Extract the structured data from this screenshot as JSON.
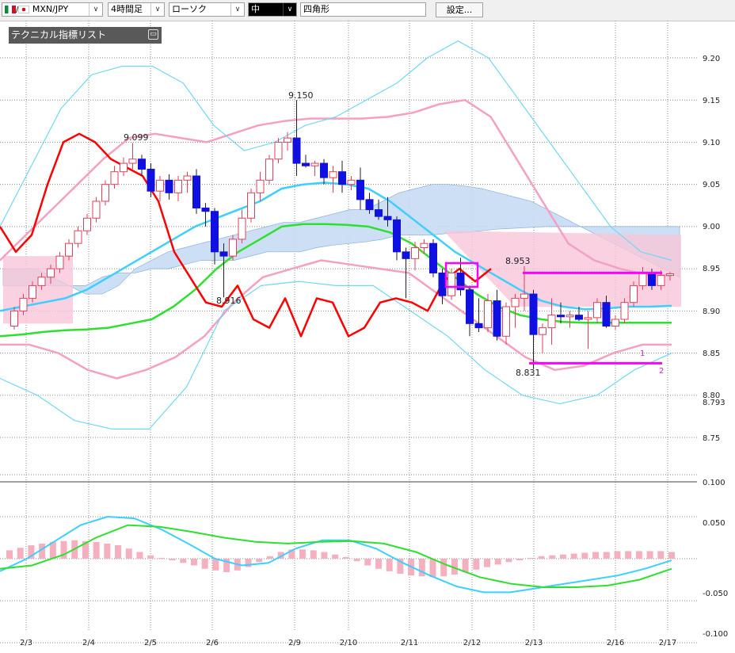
{
  "toolbar": {
    "symbol": "MXN/JPY",
    "timeframe": "4時間足",
    "chart_style": "ローソク",
    "line_width": "中",
    "draw_tool": "四角形",
    "settings_label": "設定..."
  },
  "tech_list": {
    "title": "テクニカル指標リスト",
    "min_label": "▭"
  },
  "colors": {
    "up": "#e0405a",
    "down": "#1010e0",
    "sma_short": "#ff0000",
    "sma_mid": "#3ccfff",
    "sma_long": "#2ee02e",
    "bollinger_1": "#f5a0c0",
    "bollinger_2": "#6fd8f5",
    "cloud_up": "#c8dcf5",
    "cloud_down": "#f7c6d8",
    "macd_line": "#3ccfff",
    "signal_line": "#2ee02e",
    "histogram": "#f5b0c0",
    "range_line": "#ff00ff"
  },
  "chart_data": [
    {
      "type": "candlestick",
      "title": "",
      "ylim": [
        8.76,
        9.22
      ],
      "yticks": [
        "9.20",
        "9.15",
        "9.10",
        "9.05",
        "9.00",
        "8.95",
        "8.90",
        "8.85",
        "8.80",
        "8.793",
        "8.75"
      ],
      "dates": [
        "2/3",
        "2/4",
        "2/5",
        "2/6",
        "2/9",
        "2/10",
        "2/11",
        "2/12",
        "2/13",
        "2/16",
        "2/17"
      ],
      "candles": [
        [
          8.882,
          8.905,
          8.878,
          8.9
        ],
        [
          8.9,
          8.92,
          8.895,
          8.915
        ],
        [
          8.915,
          8.935,
          8.91,
          8.93
        ],
        [
          8.93,
          8.945,
          8.925,
          8.94
        ],
        [
          8.94,
          8.955,
          8.932,
          8.95
        ],
        [
          8.95,
          8.97,
          8.945,
          8.965
        ],
        [
          8.965,
          8.985,
          8.96,
          8.98
        ],
        [
          8.98,
          9.0,
          8.975,
          8.995
        ],
        [
          8.995,
          9.015,
          8.99,
          9.01
        ],
        [
          9.01,
          9.035,
          9.005,
          9.03
        ],
        [
          9.03,
          9.055,
          9.025,
          9.05
        ],
        [
          9.05,
          9.072,
          9.045,
          9.065
        ],
        [
          9.065,
          9.082,
          9.06,
          9.075
        ],
        [
          9.075,
          9.099,
          9.068,
          9.08
        ],
        [
          9.08,
          9.085,
          9.06,
          9.068
        ],
        [
          9.068,
          9.075,
          9.035,
          9.042
        ],
        [
          9.042,
          9.06,
          9.03,
          9.055
        ],
        [
          9.055,
          9.062,
          9.032,
          9.04
        ],
        [
          9.04,
          9.06,
          9.03,
          9.055
        ],
        [
          9.055,
          9.065,
          9.04,
          9.06
        ],
        [
          9.06,
          9.068,
          9.015,
          9.022
        ],
        [
          9.022,
          9.028,
          9.0,
          9.018
        ],
        [
          9.018,
          9.022,
          8.955,
          8.97
        ],
        [
          8.97,
          8.98,
          8.916,
          8.965
        ],
        [
          8.965,
          8.99,
          8.96,
          8.985
        ],
        [
          8.985,
          9.02,
          8.98,
          9.01
        ],
        [
          9.01,
          9.045,
          9.005,
          9.04
        ],
        [
          9.04,
          9.065,
          9.03,
          9.055
        ],
        [
          9.055,
          9.085,
          9.05,
          9.08
        ],
        [
          9.08,
          9.105,
          9.075,
          9.1
        ],
        [
          9.1,
          9.112,
          9.09,
          9.105
        ],
        [
          9.105,
          9.15,
          9.06,
          9.075
        ],
        [
          9.075,
          9.085,
          9.07,
          9.072
        ],
        [
          9.072,
          9.078,
          9.06,
          9.075
        ],
        [
          9.075,
          9.08,
          9.05,
          9.058
        ],
        [
          9.058,
          9.072,
          9.04,
          9.065
        ],
        [
          9.065,
          9.078,
          9.04,
          9.05
        ],
        [
          9.05,
          9.06,
          9.043,
          9.055
        ],
        [
          9.055,
          9.07,
          9.02,
          9.032
        ],
        [
          9.032,
          9.04,
          9.015,
          9.02
        ],
        [
          9.02,
          9.032,
          9.008,
          9.012
        ],
        [
          9.012,
          9.035,
          9.0,
          9.008
        ],
        [
          9.008,
          9.012,
          8.96,
          8.97
        ],
        [
          8.97,
          8.975,
          8.915,
          8.962
        ],
        [
          8.962,
          8.982,
          8.948,
          8.975
        ],
        [
          8.975,
          8.985,
          8.968,
          8.98
        ],
        [
          8.98,
          8.985,
          8.94,
          8.945
        ],
        [
          8.945,
          8.95,
          8.908,
          8.918
        ],
        [
          8.918,
          8.95,
          8.913,
          8.945
        ],
        [
          8.945,
          8.963,
          8.918,
          8.925
        ],
        [
          8.925,
          8.93,
          8.87,
          8.885
        ],
        [
          8.885,
          8.915,
          8.875,
          8.88
        ],
        [
          8.88,
          8.92,
          8.875,
          8.912
        ],
        [
          8.912,
          8.925,
          8.865,
          8.87
        ],
        [
          8.87,
          8.91,
          8.86,
          8.905
        ],
        [
          8.905,
          8.92,
          8.88,
          8.915
        ],
        [
          8.915,
          8.953,
          8.9,
          8.92
        ],
        [
          8.92,
          8.925,
          8.831,
          8.872
        ],
        [
          8.872,
          8.885,
          8.85,
          8.88
        ],
        [
          8.88,
          8.915,
          8.86,
          8.895
        ],
        [
          8.895,
          8.91,
          8.885,
          8.893
        ],
        [
          8.893,
          8.9,
          8.88,
          8.895
        ],
        [
          8.895,
          8.905,
          8.888,
          8.89
        ],
        [
          8.89,
          8.9,
          8.855,
          8.892
        ],
        [
          8.892,
          8.915,
          8.885,
          8.91
        ],
        [
          8.91,
          8.918,
          8.88,
          8.882
        ],
        [
          8.882,
          8.895,
          8.878,
          8.89
        ],
        [
          8.89,
          8.915,
          8.885,
          8.91
        ],
        [
          8.91,
          8.935,
          8.905,
          8.93
        ],
        [
          8.93,
          8.952,
          8.925,
          8.945
        ],
        [
          8.945,
          8.95,
          8.925,
          8.93
        ],
        [
          8.93,
          8.948,
          8.925,
          8.942
        ],
        [
          8.942,
          8.946,
          8.936,
          8.944
        ]
      ],
      "annotations": [
        {
          "text": "9.099"
        },
        {
          "text": "8.916"
        },
        {
          "text": "9.150"
        },
        {
          "text": "8.953"
        },
        {
          "text": "8.831"
        },
        {
          "text": "1"
        },
        {
          "text": "2"
        }
      ],
      "cloud": {
        "span_a": [
          8.95,
          8.95,
          8.95,
          8.94,
          8.93,
          8.92,
          8.92,
          8.93,
          8.95,
          8.96,
          8.97,
          8.975,
          8.98,
          8.985,
          8.99,
          8.995,
          9.0,
          9.005,
          9.005,
          9.01,
          9.015,
          9.02,
          9.02,
          9.03,
          9.04,
          9.045,
          9.05,
          9.05,
          9.048,
          9.045,
          9.04,
          9.035,
          9.03,
          9.02,
          9.01,
          9.0,
          8.99,
          8.98,
          8.97,
          8.96,
          8.95,
          8.94
        ],
        "span_b": [
          8.93,
          8.93,
          8.93,
          8.93,
          8.93,
          8.93,
          8.94,
          8.945,
          8.945,
          8.95,
          8.95,
          8.955,
          8.96,
          8.96,
          8.96,
          8.965,
          8.97,
          8.97,
          8.97,
          8.975,
          8.978,
          8.98,
          8.982,
          8.985,
          8.99,
          8.99,
          8.99,
          8.992,
          8.993,
          8.995,
          8.997,
          8.998,
          8.999,
          9.0,
          9.0,
          9.0,
          9.0,
          9.0,
          9.0,
          9.0,
          9.0,
          9.0
        ]
      },
      "lines": {
        "sma_short": [
          9.0,
          8.97,
          8.99,
          9.05,
          9.1,
          9.11,
          9.1,
          9.08,
          9.07,
          9.06,
          9.03,
          8.97,
          8.94,
          8.91,
          8.905,
          8.93,
          8.89,
          8.88,
          8.915,
          8.87,
          8.915,
          8.91,
          8.87,
          8.88,
          8.91,
          8.915,
          8.91,
          8.9,
          8.935,
          8.95,
          8.935,
          8.95
        ],
        "sma_mid": [
          8.9,
          8.905,
          8.91,
          8.915,
          8.925,
          8.94,
          8.955,
          8.97,
          8.985,
          9.0,
          9.01,
          9.02,
          9.03,
          9.045,
          9.05,
          9.052,
          9.05,
          9.045,
          9.03,
          9.01,
          8.99,
          8.97,
          8.955,
          8.94,
          8.925,
          8.912,
          8.905,
          8.902,
          8.903,
          8.905,
          8.905,
          8.906
        ],
        "sma_long": [
          8.87,
          8.872,
          8.875,
          8.877,
          8.878,
          8.88,
          8.885,
          8.89,
          8.905,
          8.925,
          8.95,
          8.97,
          8.985,
          9.0,
          9.003,
          9.003,
          9.002,
          9.0,
          8.993,
          8.98,
          8.96,
          8.94,
          8.92,
          8.905,
          8.895,
          8.89,
          8.887,
          8.886,
          8.886,
          8.886,
          8.886,
          8.886
        ],
        "bb1_upper": [
          8.96,
          8.99,
          9.02,
          9.05,
          9.08,
          9.105,
          9.11,
          9.105,
          9.1,
          9.11,
          9.12,
          9.125,
          9.128,
          9.128,
          9.128,
          9.13,
          9.135,
          9.145,
          9.15,
          9.13,
          9.08,
          9.03,
          8.98,
          8.96,
          8.95,
          8.943,
          8.942
        ],
        "bb1_lower": [
          8.86,
          8.86,
          8.85,
          8.83,
          8.82,
          8.83,
          8.845,
          8.87,
          8.91,
          8.94,
          8.95,
          8.96,
          8.955,
          8.95,
          8.945,
          8.92,
          8.895,
          8.87,
          8.845,
          8.83,
          8.835,
          8.85,
          8.86,
          8.86
        ],
        "bb2_upper": [
          9.0,
          9.07,
          9.14,
          9.18,
          9.19,
          9.19,
          9.17,
          9.12,
          9.09,
          9.1,
          9.12,
          9.13,
          9.15,
          9.17,
          9.2,
          9.22,
          9.2,
          9.15,
          9.1,
          9.05,
          9.0,
          8.97,
          8.96
        ],
        "bb2_lower": [
          8.82,
          8.8,
          8.77,
          8.76,
          8.76,
          8.81,
          8.9,
          8.93,
          8.935,
          8.93,
          8.93,
          8.9,
          8.87,
          8.83,
          8.8,
          8.79,
          8.8,
          8.83,
          8.85
        ]
      },
      "range_lines": [
        {
          "value": 8.945
        },
        {
          "value": 8.838
        }
      ]
    },
    {
      "type": "macd",
      "yticks": [
        "0.100",
        "0.050",
        "-0.050",
        "-0.100"
      ],
      "ylim": [
        -0.1,
        0.1
      ],
      "histogram": [
        0.01,
        0.013,
        0.016,
        0.018,
        0.02,
        0.021,
        0.022,
        0.021,
        0.02,
        0.018,
        0.016,
        0.012,
        0.008,
        0.004,
        0.001,
        -0.002,
        -0.005,
        -0.008,
        -0.012,
        -0.014,
        -0.016,
        -0.014,
        -0.01,
        -0.004,
        0.003,
        0.008,
        0.011,
        0.011,
        0.01,
        0.008,
        0.005,
        0.002,
        -0.003,
        -0.008,
        -0.012,
        -0.015,
        -0.018,
        -0.02,
        -0.021,
        -0.022,
        -0.021,
        -0.019,
        -0.016,
        -0.013,
        -0.01,
        -0.007,
        -0.004,
        -0.002,
        0.001,
        0.003,
        0.004,
        0.005,
        0.006,
        0.007,
        0.008,
        0.008,
        0.009,
        0.009,
        0.009,
        0.009,
        0.009,
        0.008
      ],
      "macd_line": [
        -0.015,
        0.0,
        0.02,
        0.04,
        0.05,
        0.048,
        0.035,
        0.018,
        0.0,
        -0.008,
        -0.005,
        0.012,
        0.022,
        0.022,
        0.012,
        -0.005,
        -0.02,
        -0.033,
        -0.04,
        -0.04,
        -0.035,
        -0.03,
        -0.025,
        -0.02,
        -0.012,
        -0.002
      ],
      "signal_line": [
        -0.012,
        -0.008,
        0.005,
        0.025,
        0.04,
        0.038,
        0.032,
        0.025,
        0.02,
        0.018,
        0.02,
        0.021,
        0.018,
        0.008,
        -0.008,
        -0.022,
        -0.03,
        -0.034,
        -0.034,
        -0.032,
        -0.025,
        -0.012
      ]
    }
  ]
}
